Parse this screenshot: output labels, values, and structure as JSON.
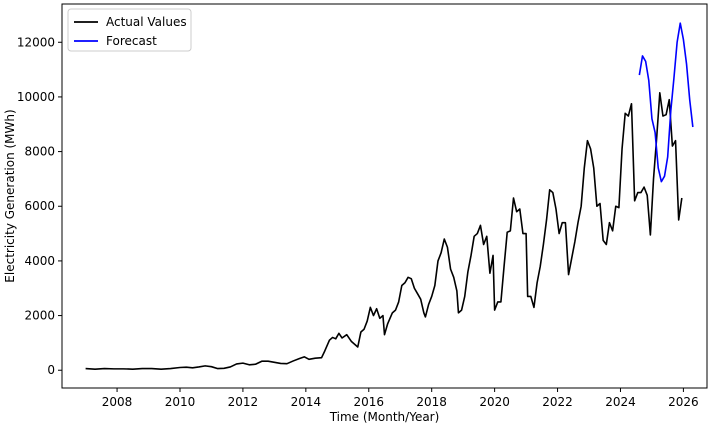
{
  "chart_data": {
    "type": "line",
    "title": "",
    "xlabel": "Time (Month/Year)",
    "ylabel": "Electricity Generation (MWh)",
    "xlim": [
      2006.25,
      2026.75
    ],
    "ylim": [
      -650,
      13400
    ],
    "xticks": [
      2008,
      2010,
      2012,
      2014,
      2016,
      2018,
      2020,
      2022,
      2024,
      2026
    ],
    "yticks": [
      0,
      2000,
      4000,
      6000,
      8000,
      10000,
      12000
    ],
    "grid": false,
    "legend": "top-left",
    "series": [
      {
        "name": "Actual Values",
        "color": "#000000",
        "points": [
          [
            2007.0,
            60
          ],
          [
            2007.3,
            40
          ],
          [
            2007.6,
            60
          ],
          [
            2007.9,
            50
          ],
          [
            2008.2,
            50
          ],
          [
            2008.5,
            40
          ],
          [
            2008.8,
            60
          ],
          [
            2009.1,
            60
          ],
          [
            2009.4,
            40
          ],
          [
            2009.7,
            60
          ],
          [
            2010.0,
            100
          ],
          [
            2010.2,
            110
          ],
          [
            2010.4,
            90
          ],
          [
            2010.6,
            120
          ],
          [
            2010.8,
            160
          ],
          [
            2011.0,
            130
          ],
          [
            2011.2,
            60
          ],
          [
            2011.4,
            70
          ],
          [
            2011.6,
            120
          ],
          [
            2011.8,
            230
          ],
          [
            2012.0,
            260
          ],
          [
            2012.2,
            200
          ],
          [
            2012.4,
            220
          ],
          [
            2012.6,
            330
          ],
          [
            2012.8,
            330
          ],
          [
            2013.0,
            290
          ],
          [
            2013.2,
            250
          ],
          [
            2013.4,
            240
          ],
          [
            2013.6,
            340
          ],
          [
            2013.8,
            430
          ],
          [
            2013.95,
            490
          ],
          [
            2014.1,
            400
          ],
          [
            2014.3,
            440
          ],
          [
            2014.5,
            460
          ],
          [
            2014.6,
            700
          ],
          [
            2014.75,
            1100
          ],
          [
            2014.85,
            1200
          ],
          [
            2014.95,
            1150
          ],
          [
            2015.05,
            1350
          ],
          [
            2015.15,
            1180
          ],
          [
            2015.3,
            1300
          ],
          [
            2015.45,
            1050
          ],
          [
            2015.55,
            950
          ],
          [
            2015.65,
            850
          ],
          [
            2015.75,
            1400
          ],
          [
            2015.85,
            1500
          ],
          [
            2015.95,
            1800
          ],
          [
            2016.05,
            2300
          ],
          [
            2016.15,
            2000
          ],
          [
            2016.25,
            2250
          ],
          [
            2016.35,
            1900
          ],
          [
            2016.45,
            2000
          ],
          [
            2016.5,
            1300
          ],
          [
            2016.6,
            1700
          ],
          [
            2016.75,
            2100
          ],
          [
            2016.85,
            2200
          ],
          [
            2016.95,
            2500
          ],
          [
            2017.05,
            3100
          ],
          [
            2017.15,
            3200
          ],
          [
            2017.25,
            3400
          ],
          [
            2017.35,
            3350
          ],
          [
            2017.45,
            3000
          ],
          [
            2017.55,
            2800
          ],
          [
            2017.65,
            2600
          ],
          [
            2017.75,
            2100
          ],
          [
            2017.8,
            1950
          ],
          [
            2017.9,
            2400
          ],
          [
            2018.0,
            2700
          ],
          [
            2018.1,
            3100
          ],
          [
            2018.2,
            4000
          ],
          [
            2018.3,
            4300
          ],
          [
            2018.4,
            4800
          ],
          [
            2018.5,
            4500
          ],
          [
            2018.6,
            3700
          ],
          [
            2018.7,
            3400
          ],
          [
            2018.8,
            2900
          ],
          [
            2018.85,
            2100
          ],
          [
            2018.95,
            2200
          ],
          [
            2019.05,
            2700
          ],
          [
            2019.15,
            3600
          ],
          [
            2019.25,
            4200
          ],
          [
            2019.35,
            4900
          ],
          [
            2019.45,
            5000
          ],
          [
            2019.55,
            5300
          ],
          [
            2019.65,
            4600
          ],
          [
            2019.75,
            4900
          ],
          [
            2019.85,
            3550
          ],
          [
            2019.95,
            4200
          ],
          [
            2020.0,
            2200
          ],
          [
            2020.1,
            2500
          ],
          [
            2020.2,
            2500
          ],
          [
            2020.3,
            3800
          ],
          [
            2020.4,
            5050
          ],
          [
            2020.5,
            5100
          ],
          [
            2020.6,
            6300
          ],
          [
            2020.7,
            5800
          ],
          [
            2020.8,
            5900
          ],
          [
            2020.9,
            5000
          ],
          [
            2021.0,
            5000
          ],
          [
            2021.05,
            2700
          ],
          [
            2021.15,
            2700
          ],
          [
            2021.25,
            2300
          ],
          [
            2021.35,
            3200
          ],
          [
            2021.45,
            3800
          ],
          [
            2021.55,
            4600
          ],
          [
            2021.65,
            5500
          ],
          [
            2021.75,
            6600
          ],
          [
            2021.85,
            6500
          ],
          [
            2021.95,
            5900
          ],
          [
            2022.05,
            5000
          ],
          [
            2022.15,
            5400
          ],
          [
            2022.25,
            5400
          ],
          [
            2022.35,
            3500
          ],
          [
            2022.45,
            4100
          ],
          [
            2022.55,
            4700
          ],
          [
            2022.65,
            5400
          ],
          [
            2022.75,
            6000
          ],
          [
            2022.85,
            7400
          ],
          [
            2022.95,
            8400
          ],
          [
            2023.05,
            8100
          ],
          [
            2023.15,
            7400
          ],
          [
            2023.25,
            6000
          ],
          [
            2023.35,
            6100
          ],
          [
            2023.45,
            4750
          ],
          [
            2023.55,
            4600
          ],
          [
            2023.65,
            5400
          ],
          [
            2023.75,
            5100
          ],
          [
            2023.85,
            6000
          ],
          [
            2023.95,
            5950
          ],
          [
            2024.05,
            8100
          ],
          [
            2024.15,
            9400
          ],
          [
            2024.25,
            9300
          ],
          [
            2024.35,
            9750
          ],
          [
            2024.45,
            6200
          ],
          [
            2024.55,
            6500
          ],
          [
            2024.65,
            6500
          ],
          [
            2024.75,
            6700
          ],
          [
            2024.85,
            6400
          ],
          [
            2024.95,
            4950
          ],
          [
            2025.05,
            7000
          ],
          [
            2025.15,
            8500
          ],
          [
            2025.25,
            10150
          ],
          [
            2025.35,
            9300
          ],
          [
            2025.45,
            9350
          ],
          [
            2025.55,
            9900
          ],
          [
            2025.65,
            8200
          ],
          [
            2025.75,
            8400
          ],
          [
            2025.85,
            5500
          ],
          [
            2025.95,
            6300
          ]
        ]
      },
      {
        "name": "Forecast",
        "color": "#0000ff",
        "points": [
          [
            2024.6,
            10800
          ],
          [
            2024.7,
            11500
          ],
          [
            2024.8,
            11300
          ],
          [
            2024.9,
            10600
          ],
          [
            2025.0,
            9200
          ],
          [
            2025.1,
            8700
          ],
          [
            2025.2,
            7400
          ],
          [
            2025.3,
            6900
          ],
          [
            2025.4,
            7100
          ],
          [
            2025.5,
            7800
          ],
          [
            2025.6,
            9500
          ],
          [
            2025.7,
            10700
          ],
          [
            2025.8,
            12000
          ],
          [
            2025.9,
            12700
          ],
          [
            2026.0,
            12100
          ],
          [
            2026.1,
            11200
          ],
          [
            2026.2,
            9900
          ],
          [
            2026.3,
            8900
          ]
        ]
      }
    ]
  }
}
